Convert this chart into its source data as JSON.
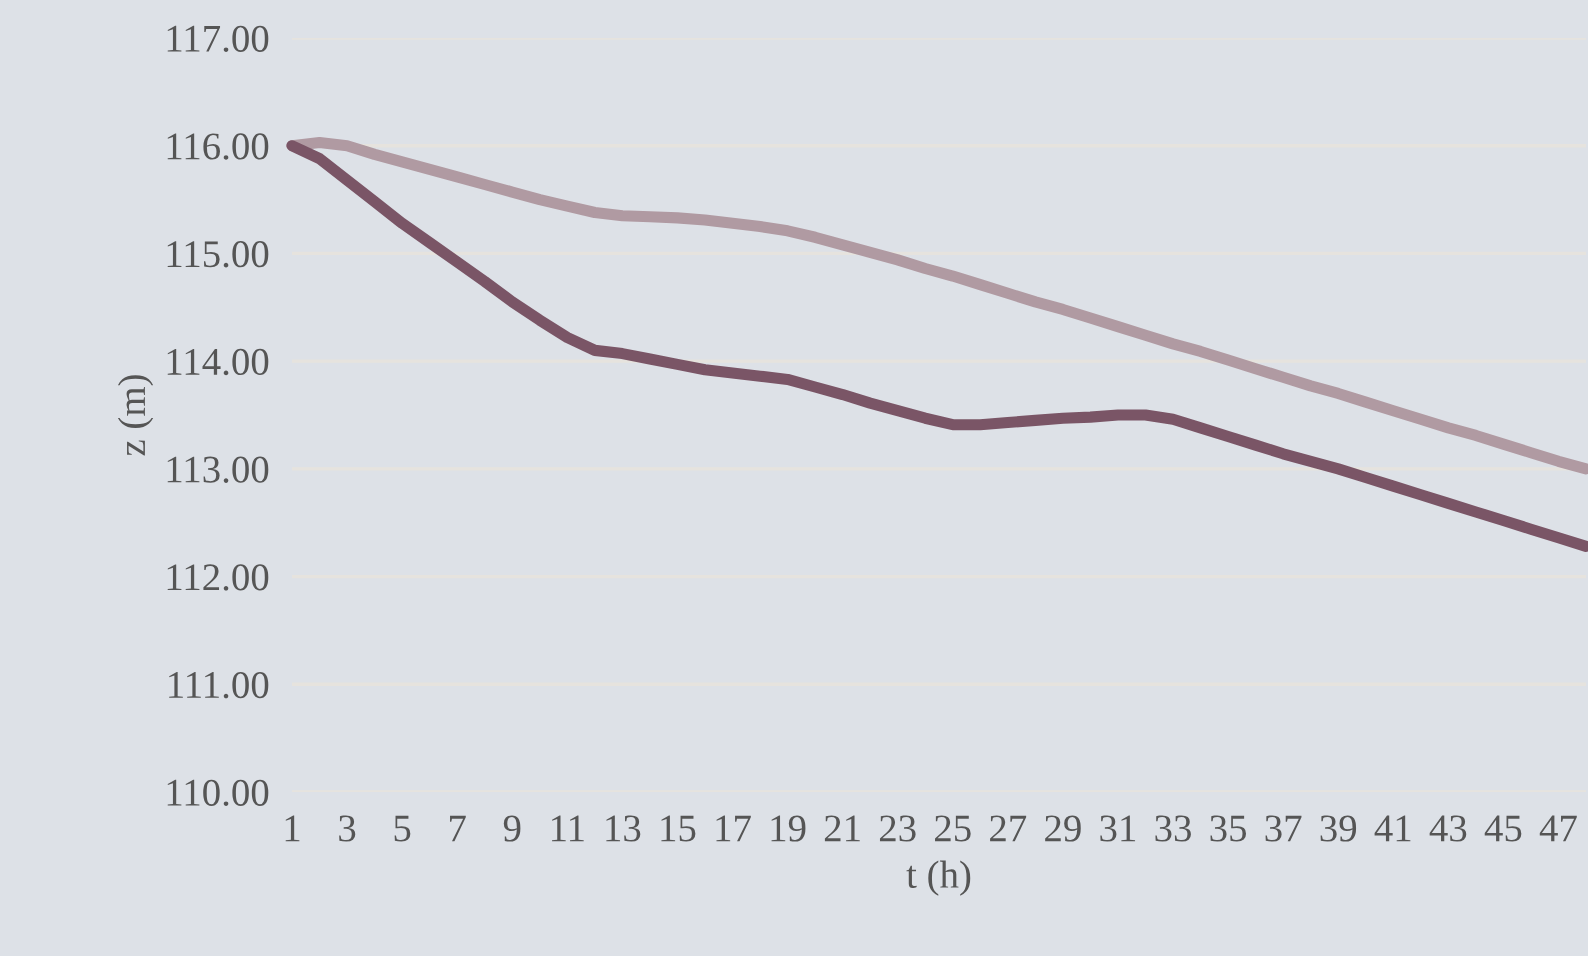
{
  "chart_data": {
    "type": "line",
    "xlabel": "t (h)",
    "ylabel": "z (m)",
    "categories": [
      "1",
      null,
      "3",
      null,
      "5",
      null,
      "7",
      null,
      "9",
      null,
      "11",
      null,
      "13",
      null,
      "15",
      null,
      "17",
      null,
      "19",
      null,
      "21",
      null,
      "23",
      null,
      "25",
      null,
      "27",
      null,
      "29",
      null,
      "31",
      null,
      "33",
      null,
      "35",
      null,
      "37",
      null,
      "39",
      null,
      "41",
      null,
      "43",
      null,
      "45",
      null,
      "47",
      null
    ],
    "series": [
      {
        "color": "#b09aa2",
        "values": [
          116.0,
          116.03,
          116.0,
          115.92,
          115.85,
          115.78,
          115.71,
          115.64,
          115.57,
          115.5,
          115.44,
          115.38,
          115.35,
          115.34,
          115.33,
          115.31,
          115.28,
          115.25,
          115.21,
          115.15,
          115.08,
          115.01,
          114.94,
          114.86,
          114.79,
          114.71,
          114.63,
          114.55,
          114.48,
          114.4,
          114.32,
          114.24,
          114.16,
          114.09,
          114.01,
          113.93,
          113.85,
          113.77,
          113.7,
          113.62,
          113.54,
          113.46,
          113.38,
          113.31,
          113.23,
          113.15,
          113.07,
          113.0
        ]
      },
      {
        "color": "#7a5566",
        "values": [
          116.0,
          115.88,
          115.68,
          115.48,
          115.28,
          115.1,
          114.92,
          114.74,
          114.55,
          114.38,
          114.22,
          114.1,
          114.07,
          114.02,
          113.97,
          113.92,
          113.89,
          113.86,
          113.83,
          113.76,
          113.69,
          113.61,
          113.54,
          113.47,
          113.41,
          113.41,
          113.43,
          113.45,
          113.47,
          113.48,
          113.5,
          113.5,
          113.46,
          113.38,
          113.3,
          113.22,
          113.14,
          113.07,
          113.0,
          112.92,
          112.84,
          112.76,
          112.68,
          112.6,
          112.52,
          112.44,
          112.36,
          112.28
        ]
      }
    ],
    "ylim": [
      110,
      117
    ],
    "yticks": [
      {
        "value": 110,
        "label": "110.00"
      },
      {
        "value": 111,
        "label": "111.00"
      },
      {
        "value": 112,
        "label": "112.00"
      },
      {
        "value": 113,
        "label": "113.00"
      },
      {
        "value": 114,
        "label": "114.00"
      },
      {
        "value": 115,
        "label": "115.00"
      },
      {
        "value": 116,
        "label": "116.00"
      },
      {
        "value": 117,
        "label": "117.00"
      }
    ],
    "grid": "y",
    "marker": "none",
    "line_style": "solid"
  }
}
